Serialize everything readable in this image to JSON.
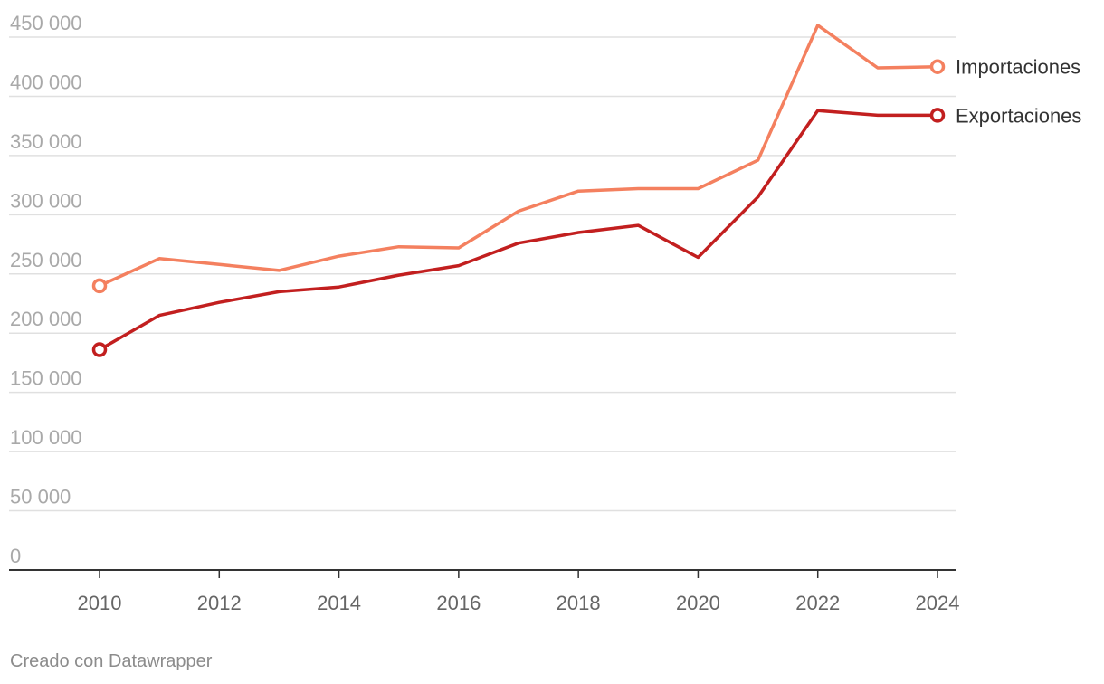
{
  "chart_data": {
    "type": "line",
    "title": "",
    "xlabel": "",
    "ylabel": "",
    "x": [
      2010,
      2011,
      2012,
      2013,
      2014,
      2015,
      2016,
      2017,
      2018,
      2019,
      2020,
      2021,
      2022,
      2023,
      2024
    ],
    "series": [
      {
        "name": "Importaciones",
        "color": "#f4805f",
        "values": [
          240000,
          263000,
          258000,
          253000,
          265000,
          273000,
          272000,
          303000,
          320000,
          322000,
          322000,
          346000,
          460000,
          424000,
          425000
        ]
      },
      {
        "name": "Exportaciones",
        "color": "#c21f1f",
        "values": [
          186000,
          215000,
          226000,
          235000,
          239000,
          249000,
          257000,
          276000,
          285000,
          291000,
          264000,
          315000,
          388000,
          384000,
          384000
        ]
      }
    ],
    "xlim": [
      2008.5,
      2024.3
    ],
    "ylim": [
      0,
      450000
    ],
    "y_ticks": [
      0,
      50000,
      100000,
      150000,
      200000,
      250000,
      300000,
      350000,
      400000,
      450000
    ],
    "y_tick_labels": [
      "0",
      "50 000",
      "100 000",
      "150 000",
      "200 000",
      "250 000",
      "300 000",
      "350 000",
      "400 000",
      "450 000"
    ],
    "x_ticks": [
      2010,
      2012,
      2014,
      2016,
      2018,
      2020,
      2022,
      2024
    ],
    "x_tick_labels": [
      "2010",
      "2012",
      "2014",
      "2016",
      "2018",
      "2020",
      "2022",
      "2024"
    ],
    "grid": true,
    "legend": "right, at line ends"
  },
  "footer": {
    "credit": "Creado con Datawrapper"
  },
  "colors": {
    "gridline": "#e0e0e0",
    "axis": "#333333"
  }
}
